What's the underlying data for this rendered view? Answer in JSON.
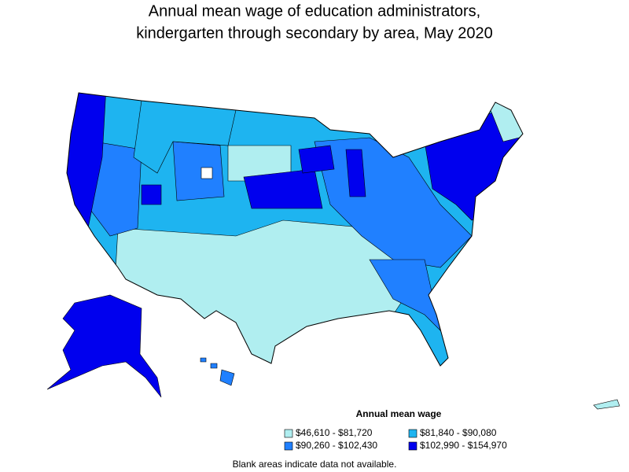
{
  "title": [
    "Annual mean wage of education administrators,",
    "kindergarten through secondary by area, May 2020"
  ],
  "legend": {
    "title": "Annual mean wage",
    "items": [
      {
        "label": "$46,610 - $81,720",
        "color": "#b0eef0"
      },
      {
        "label": "$81,840 - $90,080",
        "color": "#1eb4f0"
      },
      {
        "label": "$90,260 - $102,430",
        "color": "#2080ff"
      },
      {
        "label": "$102,990 - $154,970",
        "color": "#0000ee"
      }
    ]
  },
  "footnote": "Blank areas indicate data not available."
}
